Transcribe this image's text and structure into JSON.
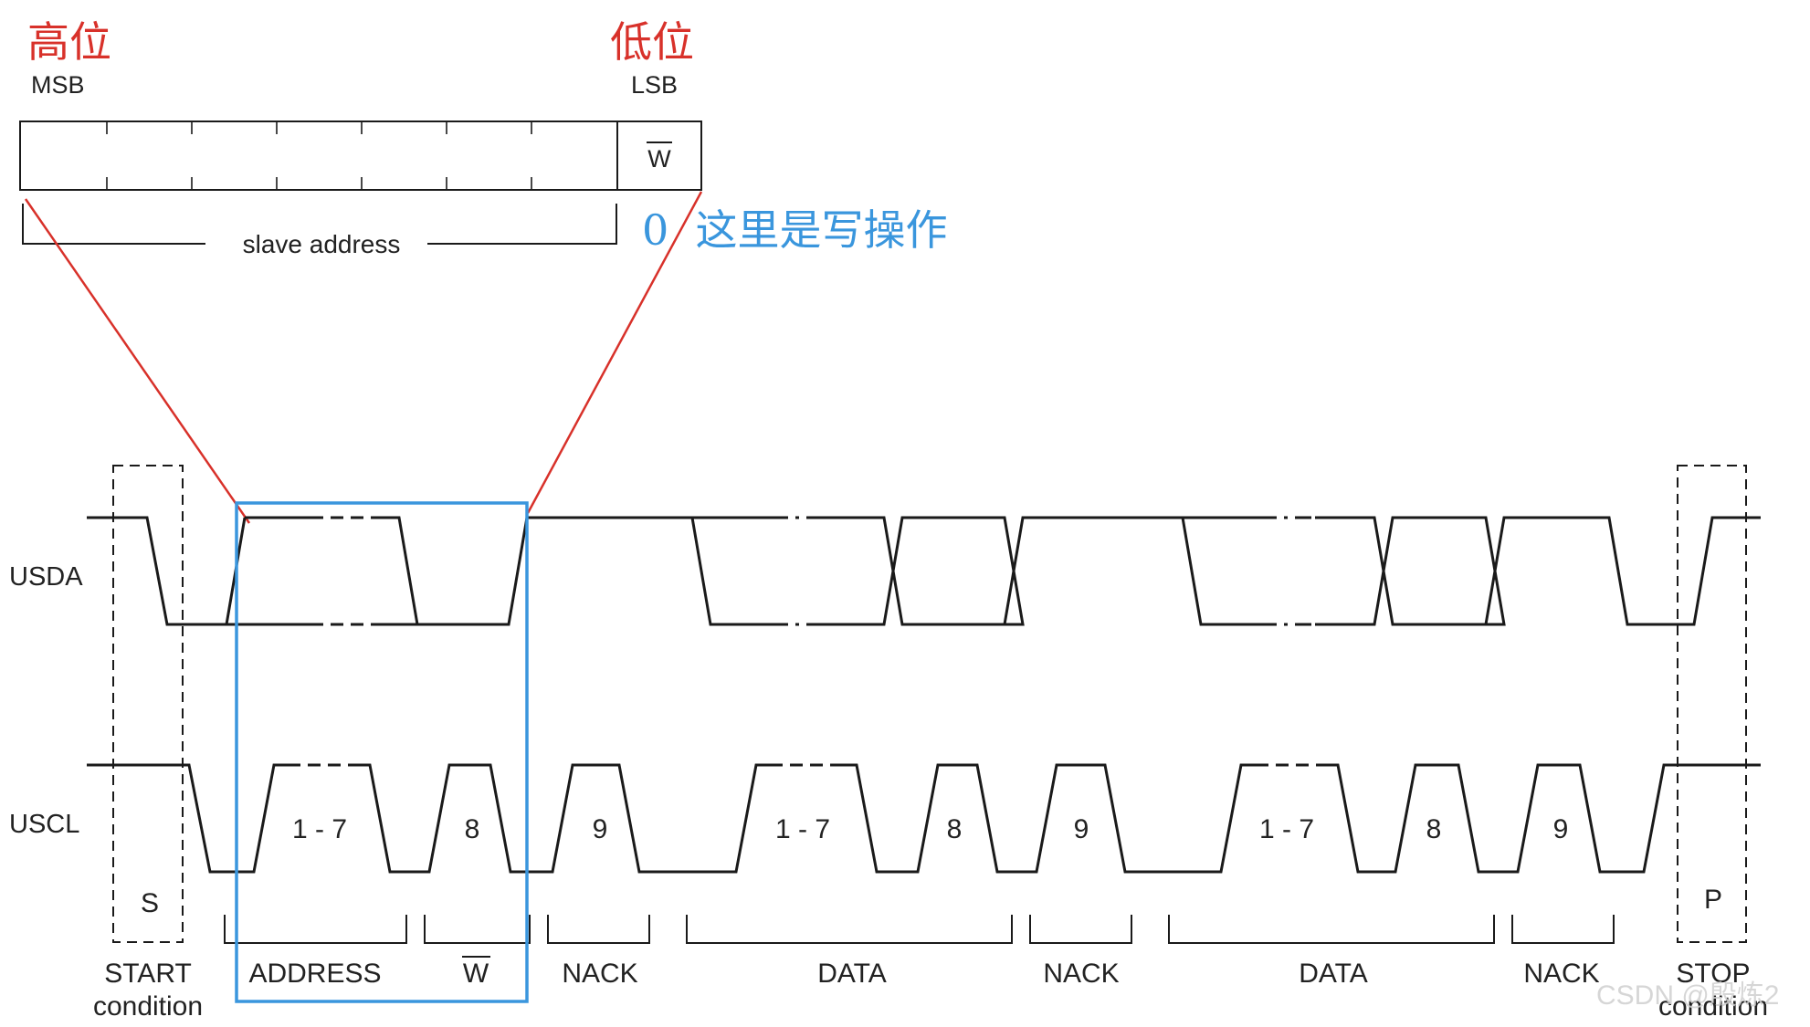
{
  "header": {
    "msb_cn": "高位",
    "lsb_cn": "低位",
    "msb": "MSB",
    "lsb": "LSB"
  },
  "address_byte": {
    "rw_label": "W",
    "bracket_label": "slave address",
    "annotation": "0  这里是写操作"
  },
  "signals": {
    "sda": "USDA",
    "scl": "USCL"
  },
  "clock_labels": [
    "1 - 7",
    "8",
    "9",
    "1 - 7",
    "8",
    "9",
    "1 - 7",
    "8",
    "9"
  ],
  "conditions": {
    "start_marker": "S",
    "stop_marker": "P"
  },
  "phases": {
    "start_line1": "START",
    "start_line2": "condition",
    "address": "ADDRESS",
    "w": "W",
    "nack1": "NACK",
    "data1": "DATA",
    "nack2": "NACK",
    "data2": "DATA",
    "nack3": "NACK",
    "stop_line1": "STOP",
    "stop_line2": "condition"
  },
  "watermark": "CSDN @殷炼2",
  "colors": {
    "line": "#1a1a1a",
    "text": "#222222",
    "red": "#d8312a",
    "blue": "#3a96dd",
    "watermark": "#d0d0d0"
  }
}
